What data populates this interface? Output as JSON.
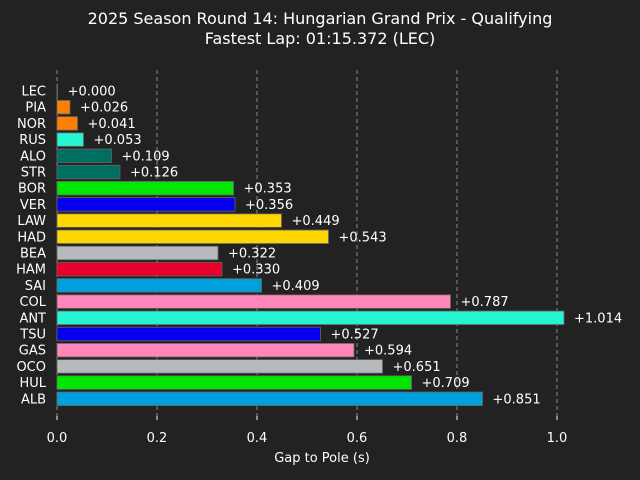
{
  "chart_data": {
    "type": "bar",
    "orientation": "horizontal",
    "title": "2025 Season Round 14: Hungarian Grand Prix - Qualifying",
    "subtitle": "Fastest Lap: 01:15.372 (LEC)",
    "xlabel": "Gap to Pole (s)",
    "ylabel": "",
    "xlim": [
      0.0,
      1.0
    ],
    "xticks": [
      "0.0",
      "0.2",
      "0.4",
      "0.6",
      "0.8",
      "1.0"
    ],
    "grid": "vertical dashed",
    "categories": [
      "LEC",
      "PIA",
      "NOR",
      "RUS",
      "ALO",
      "STR",
      "BOR",
      "VER",
      "LAW",
      "HAD",
      "BEA",
      "HAM",
      "SAI",
      "COL",
      "ANT",
      "TSU",
      "GAS",
      "OCO",
      "HUL",
      "ALB"
    ],
    "values": [
      0.0,
      0.026,
      0.041,
      0.053,
      0.109,
      0.126,
      0.353,
      0.356,
      0.449,
      0.543,
      0.322,
      0.33,
      0.409,
      0.787,
      1.014,
      0.527,
      0.594,
      0.651,
      0.709,
      0.851
    ],
    "labels": [
      "+0.000",
      "+0.026",
      "+0.041",
      "+0.053",
      "+0.109",
      "+0.126",
      "+0.353",
      "+0.356",
      "+0.449",
      "+0.543",
      "+0.322",
      "+0.330",
      "+0.409",
      "+0.787",
      "+1.014",
      "+0.527",
      "+0.594",
      "+0.651",
      "+0.709",
      "+0.851"
    ],
    "colors": [
      "#DC0000",
      "#FF8000",
      "#FF8000",
      "#27F4D2",
      "#006F62",
      "#006F62",
      "#00E701",
      "#0600EF",
      "#FFD700",
      "#FFD700",
      "#B6BABD",
      "#E8002D",
      "#00A0DE",
      "#FF87BC",
      "#27F4D2",
      "#0600EF",
      "#FF87BC",
      "#B6BABD",
      "#00E701",
      "#00A0DE"
    ]
  },
  "colors": {
    "background": "#222222",
    "text": "#ffffff",
    "grid": "#888888",
    "bar_edge": "#666666"
  }
}
